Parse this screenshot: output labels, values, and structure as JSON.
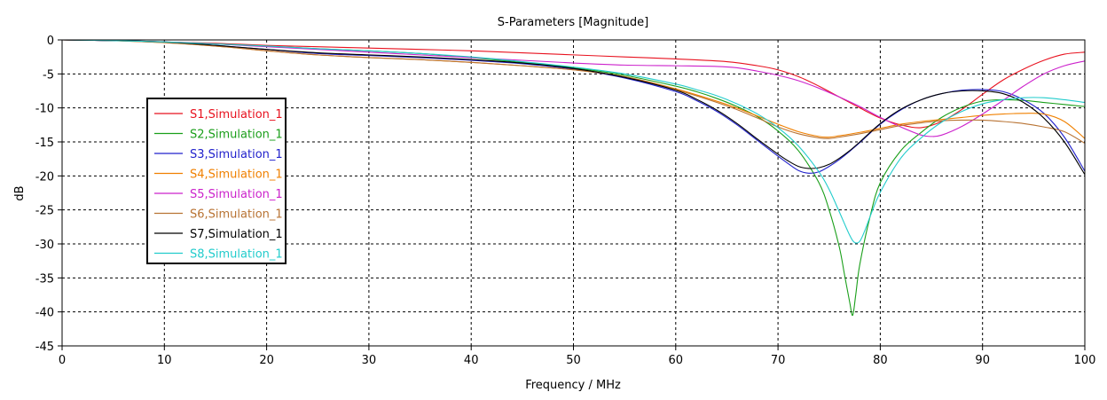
{
  "chart_data": {
    "type": "line",
    "title": "S-Parameters [Magnitude]",
    "xlabel": "Frequency / MHz",
    "ylabel": "dB",
    "xlim": [
      0,
      100
    ],
    "ylim": [
      -45,
      0
    ],
    "xticks": [
      0,
      10,
      20,
      30,
      40,
      50,
      60,
      70,
      80,
      90,
      100
    ],
    "yticks": [
      0,
      -5,
      -10,
      -15,
      -20,
      -25,
      -30,
      -35,
      -40,
      -45
    ],
    "grid": true,
    "legend_position": "left",
    "series": [
      {
        "name": "S1,Simulation_1",
        "color": "#e8121f",
        "x": [
          0,
          5,
          10,
          15,
          20,
          25,
          30,
          35,
          40,
          45,
          50,
          55,
          60,
          65,
          68,
          70,
          72,
          74,
          76,
          78,
          80,
          82,
          84,
          86,
          88,
          90,
          92,
          94,
          96,
          98,
          100
        ],
        "y": [
          0,
          -0.1,
          -0.3,
          -0.5,
          -0.8,
          -1.0,
          -1.2,
          -1.4,
          -1.6,
          -1.9,
          -2.2,
          -2.5,
          -2.8,
          -3.2,
          -3.8,
          -4.4,
          -5.4,
          -6.8,
          -8.4,
          -10.0,
          -11.5,
          -12.5,
          -12.9,
          -12.0,
          -10.2,
          -8.0,
          -5.9,
          -4.3,
          -3.0,
          -2.1,
          -1.8
        ]
      },
      {
        "name": "S2,Simulation_1",
        "color": "#1a9f1a",
        "x": [
          0,
          5,
          10,
          15,
          20,
          25,
          30,
          35,
          40,
          45,
          50,
          55,
          60,
          62,
          64,
          66,
          68,
          70,
          72,
          74,
          75,
          76,
          76.5,
          77,
          77.3,
          77.6,
          78,
          79,
          80,
          82,
          84,
          86,
          88,
          90,
          92,
          94,
          96,
          98,
          100
        ],
        "y": [
          0,
          -0.1,
          -0.3,
          -0.6,
          -0.9,
          -1.3,
          -1.6,
          -2.0,
          -2.6,
          -3.3,
          -4.1,
          -5.2,
          -6.8,
          -7.6,
          -8.6,
          -9.8,
          -11.3,
          -13.4,
          -16.3,
          -21.0,
          -25.0,
          -30.5,
          -34.5,
          -38.5,
          -40.5,
          -37.5,
          -33.0,
          -26.0,
          -21.0,
          -16.3,
          -13.6,
          -11.4,
          -9.9,
          -9.0,
          -8.8,
          -8.9,
          -9.2,
          -9.5,
          -9.8
        ]
      },
      {
        "name": "S3,Simulation_1",
        "color": "#2222cc",
        "x": [
          0,
          5,
          10,
          15,
          20,
          25,
          30,
          35,
          40,
          45,
          50,
          55,
          60,
          62,
          64,
          66,
          68,
          70,
          71,
          72,
          73,
          74,
          75,
          76,
          77,
          78,
          80,
          82,
          84,
          86,
          88,
          90,
          92,
          94,
          96,
          98,
          100
        ],
        "y": [
          0,
          -0.1,
          -0.3,
          -0.8,
          -1.4,
          -2.0,
          -2.3,
          -2.6,
          -3.0,
          -3.5,
          -4.3,
          -5.6,
          -7.6,
          -8.9,
          -10.5,
          -12.5,
          -14.8,
          -17.1,
          -18.2,
          -19.2,
          -19.6,
          -19.4,
          -18.6,
          -17.6,
          -16.4,
          -15.1,
          -12.4,
          -10.3,
          -8.8,
          -7.9,
          -7.4,
          -7.3,
          -7.6,
          -8.8,
          -10.8,
          -14.3,
          -19.3
        ]
      },
      {
        "name": "S4,Simulation_1",
        "color": "#f08000",
        "x": [
          0,
          5,
          10,
          15,
          20,
          25,
          30,
          35,
          40,
          45,
          50,
          55,
          60,
          65,
          68,
          70,
          72,
          74,
          75,
          76,
          78,
          80,
          82,
          84,
          86,
          88,
          90,
          92,
          94,
          96,
          98,
          100
        ],
        "y": [
          0,
          -0.1,
          -0.4,
          -0.9,
          -1.6,
          -2.2,
          -2.6,
          -2.9,
          -3.3,
          -3.8,
          -4.4,
          -5.4,
          -7.2,
          -9.5,
          -11.2,
          -12.4,
          -13.5,
          -14.2,
          -14.3,
          -14.1,
          -13.6,
          -13.0,
          -12.4,
          -12.0,
          -11.7,
          -11.4,
          -11.1,
          -10.9,
          -10.8,
          -10.9,
          -12.0,
          -14.5
        ]
      },
      {
        "name": "S5,Simulation_1",
        "color": "#cc22cc",
        "x": [
          0,
          5,
          10,
          15,
          20,
          25,
          30,
          35,
          40,
          45,
          50,
          55,
          60,
          64,
          66,
          68,
          70,
          72,
          74,
          76,
          78,
          80,
          82,
          84,
          85,
          86,
          88,
          90,
          92,
          94,
          96,
          98,
          100
        ],
        "y": [
          0,
          -0.1,
          -0.3,
          -0.6,
          -1.0,
          -1.4,
          -1.8,
          -2.2,
          -2.6,
          -3.0,
          -3.4,
          -3.7,
          -3.8,
          -3.9,
          -4.1,
          -4.6,
          -5.2,
          -6.0,
          -7.1,
          -8.4,
          -9.8,
          -11.4,
          -12.8,
          -14.0,
          -14.2,
          -14.0,
          -12.7,
          -10.9,
          -8.9,
          -6.8,
          -5.0,
          -3.8,
          -3.1
        ]
      },
      {
        "name": "S6,Simulation_1",
        "color": "#b87333",
        "x": [
          0,
          5,
          10,
          15,
          20,
          25,
          30,
          35,
          40,
          45,
          50,
          55,
          60,
          65,
          68,
          70,
          72,
          74,
          75,
          76,
          78,
          80,
          82,
          84,
          86,
          88,
          90,
          92,
          94,
          96,
          98,
          100
        ],
        "y": [
          0,
          -0.1,
          -0.4,
          -0.9,
          -1.6,
          -2.2,
          -2.6,
          -2.9,
          -3.3,
          -3.8,
          -4.4,
          -5.4,
          -7.3,
          -9.7,
          -11.5,
          -12.8,
          -13.8,
          -14.4,
          -14.5,
          -14.3,
          -13.8,
          -13.2,
          -12.6,
          -12.2,
          -11.9,
          -11.8,
          -11.8,
          -12.0,
          -12.3,
          -12.8,
          -13.5,
          -15.2
        ]
      },
      {
        "name": "S7,Simulation_1",
        "color": "#000000",
        "x": [
          0,
          5,
          10,
          15,
          20,
          25,
          30,
          35,
          40,
          45,
          50,
          55,
          60,
          62,
          64,
          66,
          68,
          70,
          71,
          72,
          73,
          74,
          75,
          76,
          77,
          78,
          80,
          82,
          84,
          86,
          88,
          90,
          92,
          94,
          96,
          98,
          100
        ],
        "y": [
          0,
          -0.1,
          -0.3,
          -0.8,
          -1.4,
          -1.9,
          -2.2,
          -2.5,
          -2.9,
          -3.4,
          -4.2,
          -5.5,
          -7.4,
          -8.7,
          -10.3,
          -12.3,
          -14.6,
          -16.8,
          -17.8,
          -18.6,
          -18.9,
          -18.8,
          -18.3,
          -17.4,
          -16.3,
          -15.0,
          -12.3,
          -10.2,
          -8.8,
          -7.9,
          -7.5,
          -7.5,
          -7.9,
          -9.2,
          -11.5,
          -15.0,
          -19.8
        ]
      },
      {
        "name": "S8,Simulation_1",
        "color": "#22cccc",
        "x": [
          0,
          5,
          10,
          15,
          20,
          25,
          30,
          35,
          40,
          45,
          50,
          55,
          60,
          62,
          64,
          66,
          68,
          70,
          72,
          74,
          75,
          76,
          77,
          77.5,
          78,
          78.5,
          79,
          80,
          82,
          84,
          86,
          88,
          90,
          92,
          94,
          96,
          98,
          100
        ],
        "y": [
          0,
          -0.1,
          -0.3,
          -0.6,
          -0.9,
          -1.3,
          -1.6,
          -2.0,
          -2.5,
          -3.2,
          -4.0,
          -5.0,
          -6.5,
          -7.3,
          -8.2,
          -9.4,
          -10.9,
          -12.9,
          -15.6,
          -19.4,
          -22.0,
          -25.3,
          -28.7,
          -29.8,
          -29.6,
          -28.0,
          -26.0,
          -22.4,
          -17.4,
          -14.4,
          -12.1,
          -10.5,
          -9.4,
          -8.8,
          -8.5,
          -8.5,
          -8.8,
          -9.2
        ]
      }
    ]
  }
}
